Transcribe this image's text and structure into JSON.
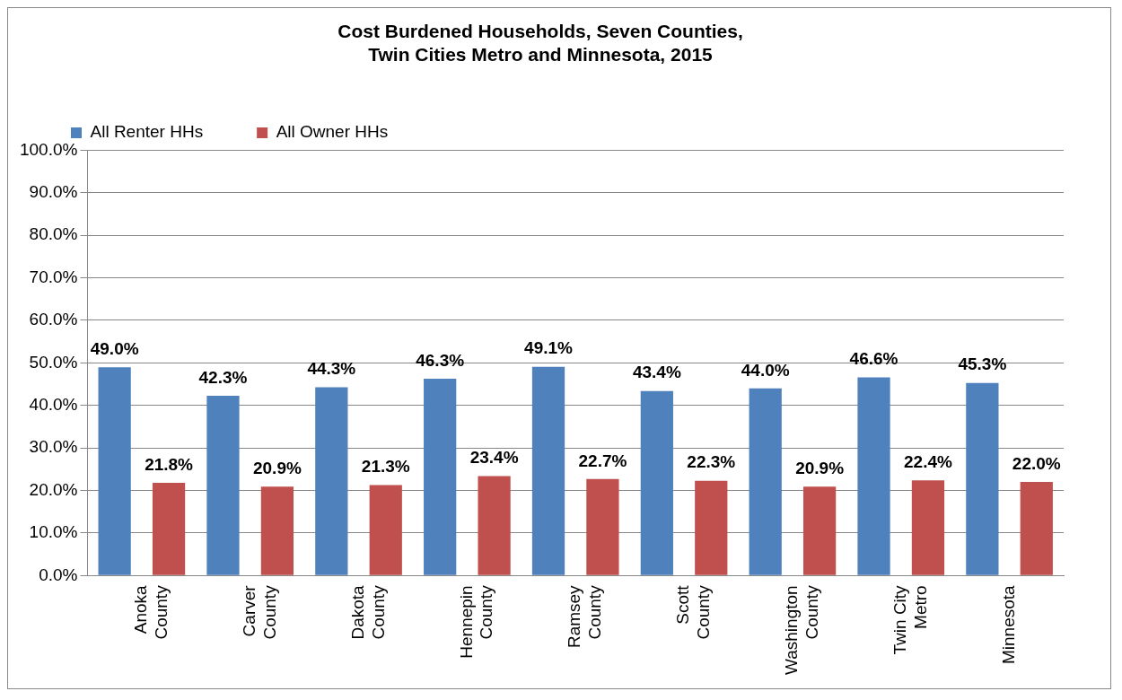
{
  "chart_data": {
    "type": "bar",
    "title": "Cost Burdened Households, Seven Counties, Twin Cities Metro and Minnesota, 2015",
    "categories": [
      "Anoka County",
      "Carver County",
      "Dakota County",
      "Hennepin County",
      "Ramsey County",
      "Scott County",
      "Washington County",
      "Twin City Metro",
      "Minnesota"
    ],
    "series": [
      {
        "name": "All Renter HHs",
        "color": "#4f81bd",
        "values": [
          49.0,
          42.3,
          44.3,
          46.3,
          49.1,
          43.4,
          44.0,
          46.6,
          45.3
        ],
        "value_labels": [
          "49.0%",
          "42.3%",
          "44.3%",
          "46.3%",
          "49.1%",
          "43.4%",
          "44.0%",
          "46.6%",
          "45.3%"
        ]
      },
      {
        "name": "All Owner HHs",
        "color": "#c0504d",
        "values": [
          21.8,
          20.9,
          21.3,
          23.4,
          22.7,
          22.3,
          20.9,
          22.4,
          22.0
        ],
        "value_labels": [
          "21.8%",
          "20.9%",
          "21.3%",
          "23.4%",
          "22.7%",
          "22.3%",
          "20.9%",
          "22.4%",
          "22.0%"
        ]
      }
    ],
    "ylim": [
      0,
      100
    ],
    "yticks": [
      {
        "value": 0,
        "label": "0.0%"
      },
      {
        "value": 10,
        "label": "10.0%"
      },
      {
        "value": 20,
        "label": "20.0%"
      },
      {
        "value": 30,
        "label": "30.0%"
      },
      {
        "value": 40,
        "label": "40.0%"
      },
      {
        "value": 50,
        "label": "50.0%"
      },
      {
        "value": 60,
        "label": "60.0%"
      },
      {
        "value": 70,
        "label": "70.0%"
      },
      {
        "value": 80,
        "label": "80.0%"
      },
      {
        "value": 90,
        "label": "90.0%"
      },
      {
        "value": 100,
        "label": "100.0%"
      }
    ],
    "grid": "y",
    "legend": "top left"
  }
}
